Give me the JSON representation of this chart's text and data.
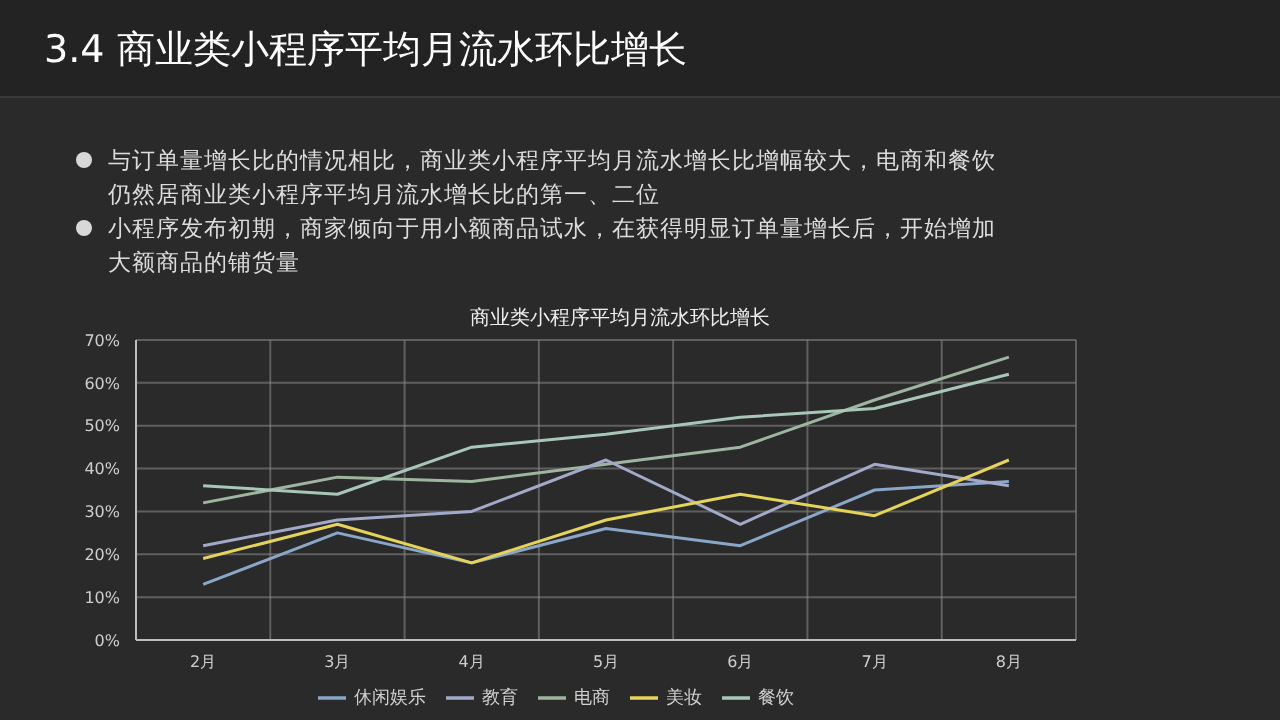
{
  "chart_data": {
    "type": "line",
    "title": "3.4 商业类小程序平均月流水环比增长",
    "subtitle": "商业类小程序平均月流水环比增长",
    "annotations": [
      "与订单量增长比的情况相比，商业类小程序平均月流水增长比增幅较大，电商和餐饮仍然居商业类小程序平均月流水增长比的第一、二位",
      "小程序发布初期，商家倾向于用小额商品试水，在获得明显订单量增长后，开始增加大额商品的铺货量"
    ],
    "categories": [
      "2月",
      "3月",
      "4月",
      "5月",
      "6月",
      "7月",
      "8月"
    ],
    "series": [
      {
        "name": "电商",
        "color": "#9fb5a0",
        "values": [
          32,
          38,
          37,
          41,
          45,
          56,
          66
        ]
      },
      {
        "name": "餐饮",
        "color": "#a9c7b8",
        "values": [
          36,
          34,
          45,
          48,
          52,
          54,
          62
        ]
      },
      {
        "name": "休闲娱乐",
        "color": "#8aa7c8",
        "values": [
          13,
          25,
          18,
          26,
          22,
          35,
          37
        ]
      },
      {
        "name": "教育",
        "color": "#a3a9c9",
        "values": [
          22,
          28,
          30,
          42,
          27,
          41,
          36
        ]
      },
      {
        "name": "美妆",
        "color": "#e5d35a",
        "values": [
          19,
          27,
          18,
          28,
          34,
          29,
          42
        ]
      }
    ],
    "ylim": [
      0,
      70
    ],
    "yticks": [
      {
        "value": 0,
        "label": "0%"
      },
      {
        "value": 10,
        "label": "10%"
      },
      {
        "value": 20,
        "label": "20%"
      },
      {
        "value": 30,
        "label": "30%"
      },
      {
        "value": 40,
        "label": "40%"
      },
      {
        "value": 50,
        "label": "50%"
      },
      {
        "value": 60,
        "label": "60%"
      },
      {
        "value": 70,
        "label": "70%"
      }
    ],
    "grid": true,
    "legend": "bottom",
    "marker": "none",
    "line_style": "solid"
  }
}
